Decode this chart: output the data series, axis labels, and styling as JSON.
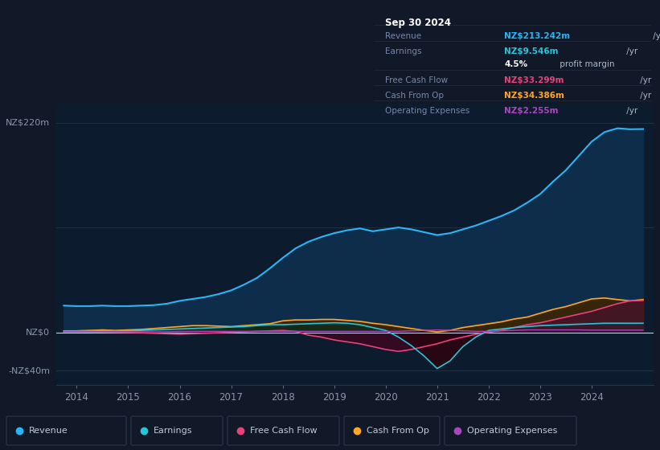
{
  "bg_color": "#111827",
  "plot_bg_color": "#0d1b2e",
  "text_color": "#8899aa",
  "white_color": "#ffffff",
  "ylabel_220": "NZ$220m",
  "ylabel_0": "NZ$0",
  "ylabel_neg40": "-NZ$40m",
  "years": [
    2013.75,
    2014.0,
    2014.25,
    2014.5,
    2014.75,
    2015.0,
    2015.25,
    2015.5,
    2015.75,
    2016.0,
    2016.25,
    2016.5,
    2016.75,
    2017.0,
    2017.25,
    2017.5,
    2017.75,
    2018.0,
    2018.25,
    2018.5,
    2018.75,
    2019.0,
    2019.25,
    2019.5,
    2019.75,
    2020.0,
    2020.25,
    2020.5,
    2020.75,
    2021.0,
    2021.25,
    2021.5,
    2021.75,
    2022.0,
    2022.25,
    2022.5,
    2022.75,
    2023.0,
    2023.25,
    2023.5,
    2023.75,
    2024.0,
    2024.25,
    2024.5,
    2024.75,
    2025.0
  ],
  "revenue": [
    28,
    27.5,
    27.5,
    28,
    27.5,
    27.5,
    28,
    28.5,
    30,
    33,
    35,
    37,
    40,
    44,
    50,
    57,
    67,
    78,
    88,
    95,
    100,
    104,
    107,
    109,
    106,
    108,
    110,
    108,
    105,
    102,
    104,
    108,
    112,
    117,
    122,
    128,
    136,
    145,
    158,
    170,
    185,
    200,
    210,
    214,
    213,
    213.242
  ],
  "earnings": [
    1.5,
    1.5,
    1.5,
    1.5,
    1.5,
    1.5,
    2.0,
    2.5,
    3.0,
    3.5,
    4.0,
    4.5,
    5.0,
    5.5,
    6.0,
    7.0,
    8.0,
    8.0,
    8.5,
    9.0,
    9.5,
    10.0,
    9.5,
    8.0,
    5.0,
    2.0,
    -5.0,
    -14.0,
    -25.0,
    -38.0,
    -30.0,
    -15.0,
    -5.0,
    2.0,
    3.5,
    5.0,
    6.0,
    7.0,
    7.5,
    8.0,
    8.5,
    9.0,
    9.5,
    9.546,
    9.5,
    9.546
  ],
  "free_cash_flow": [
    0.5,
    0.5,
    0.3,
    0.2,
    0.0,
    -0.2,
    -0.5,
    -1.0,
    -1.5,
    -2.0,
    -1.5,
    -1.0,
    -0.5,
    0.0,
    0.5,
    1.0,
    1.5,
    2.0,
    1.0,
    -3.0,
    -5.0,
    -8.0,
    -10.0,
    -12.0,
    -15.0,
    -18.0,
    -20.0,
    -18.0,
    -15.0,
    -12.0,
    -8.0,
    -5.0,
    -2.0,
    0.0,
    2.0,
    5.0,
    8.0,
    10.0,
    13.0,
    16.0,
    19.0,
    22.0,
    26.0,
    30.0,
    33.0,
    33.299
  ],
  "cash_from_op": [
    1.0,
    1.5,
    2.0,
    2.5,
    2.0,
    2.5,
    3.0,
    4.0,
    5.0,
    6.0,
    7.0,
    7.0,
    6.5,
    6.0,
    7.0,
    8.0,
    9.0,
    12.0,
    13.0,
    13.0,
    13.5,
    13.5,
    12.5,
    11.5,
    9.5,
    8.0,
    6.0,
    4.0,
    2.0,
    0.5,
    2.0,
    5.0,
    7.0,
    9.0,
    11.0,
    14.0,
    16.0,
    20.0,
    24.0,
    27.0,
    31.0,
    35.0,
    36.0,
    34.386,
    33.0,
    34.386
  ],
  "op_expenses": [
    0.5,
    0.5,
    0.5,
    0.5,
    0.5,
    0.5,
    0.5,
    0.5,
    0.5,
    1.0,
    1.0,
    1.0,
    1.0,
    1.0,
    1.0,
    1.0,
    1.0,
    1.0,
    1.0,
    1.0,
    1.0,
    1.0,
    1.0,
    1.0,
    1.0,
    1.0,
    1.0,
    1.5,
    2.0,
    2.5,
    2.0,
    1.5,
    1.0,
    1.0,
    1.5,
    2.0,
    2.5,
    2.5,
    2.5,
    2.5,
    2.5,
    2.255,
    2.255,
    2.255,
    2.255,
    2.255
  ],
  "revenue_color": "#29b6f6",
  "earnings_color": "#26c6da",
  "fcf_color": "#ec407a",
  "cfo_color": "#ffa726",
  "opex_color": "#ab47bc",
  "xlim": [
    2013.6,
    2025.2
  ],
  "ylim": [
    -55,
    240
  ],
  "xticks": [
    2014,
    2015,
    2016,
    2017,
    2018,
    2019,
    2020,
    2021,
    2022,
    2023,
    2024
  ],
  "gridline_y": [
    220,
    110,
    0,
    -40
  ],
  "table_title": "Sep 30 2024",
  "table_rows": [
    {
      "label": "Revenue",
      "value": "NZ$213.242m",
      "value_color": "#29b6f6",
      "suffix": " /yr"
    },
    {
      "label": "Earnings",
      "value": "NZ$9.546m",
      "value_color": "#26c6da",
      "suffix": " /yr"
    },
    {
      "label": "",
      "value": "4.5%",
      "value_color": "#ffffff",
      "suffix": " profit margin"
    },
    {
      "label": "Free Cash Flow",
      "value": "NZ$33.299m",
      "value_color": "#ec407a",
      "suffix": " /yr"
    },
    {
      "label": "Cash From Op",
      "value": "NZ$34.386m",
      "value_color": "#ffa726",
      "suffix": " /yr"
    },
    {
      "label": "Operating Expenses",
      "value": "NZ$2.255m",
      "value_color": "#ab47bc",
      "suffix": " /yr"
    }
  ],
  "legend_items": [
    {
      "label": "Revenue",
      "color": "#29b6f6"
    },
    {
      "label": "Earnings",
      "color": "#26c6da"
    },
    {
      "label": "Free Cash Flow",
      "color": "#ec407a"
    },
    {
      "label": "Cash From Op",
      "color": "#ffa726"
    },
    {
      "label": "Operating Expenses",
      "color": "#ab47bc"
    }
  ]
}
